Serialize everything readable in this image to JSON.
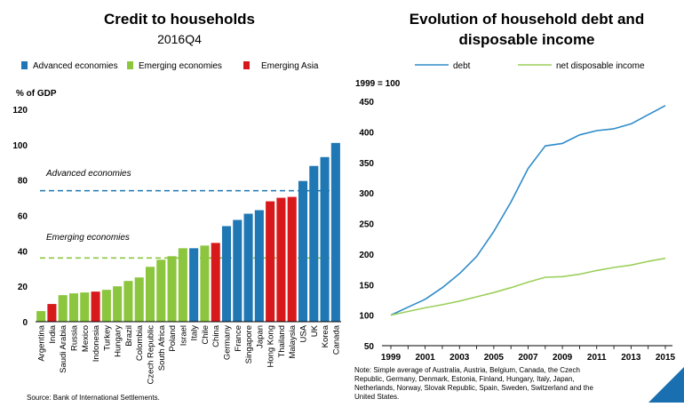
{
  "colors": {
    "advanced": "#1f77b4",
    "emerging": "#8cc63f",
    "asia": "#d7191c",
    "debt_line": "#2e8bc9",
    "income_line": "#9ccf5a",
    "corner": "#1a6fb0"
  },
  "left": {
    "title": "Credit to households",
    "subtitle": "2016Q4",
    "unit": "% of GDP",
    "legend": [
      {
        "label": "Advanced economies",
        "color": "#1f77b4"
      },
      {
        "label": "Emerging economies",
        "color": "#8cc63f"
      },
      {
        "label": "Emerging Asia",
        "color": "#d7191c"
      }
    ],
    "ref_lines": [
      {
        "label": "Advanced economies",
        "value": 74,
        "color": "#1f77b4"
      },
      {
        "label": "Emerging economies",
        "value": 36,
        "color": "#8cc63f"
      }
    ],
    "source": "Source: Bank of International Settlements."
  },
  "right": {
    "title_line1": "Evolution of household debt and",
    "title_line2": "disposable income",
    "index_note": "1999 = 100",
    "note_lines": [
      "Note: Simple average of Australia, Austria, Belgium, Canada, the Czech",
      "Republic, Germany, Denmark, Estonia, Finland, Hungary, Italy, Japan,",
      "Netherlands, Norway, Slovak Republic, Spain, Sweden, Switzerland and the",
      "United States."
    ]
  },
  "chart_data": [
    {
      "type": "bar",
      "title": "Credit to households",
      "subtitle": "2016Q4",
      "ylabel": "% of GDP",
      "ylim": [
        0,
        120
      ],
      "yticks": [
        0,
        20,
        40,
        60,
        80,
        100,
        120
      ],
      "grid": false,
      "legend_position": "top",
      "categories": [
        "Argentina",
        "India",
        "Saudi Arabia",
        "Russia",
        "Mexico",
        "Indonesia",
        "Turkey",
        "Hungary",
        "Brazil",
        "Colombia",
        "Czech Republic",
        "South Africa",
        "Poland",
        "Israel",
        "Italy",
        "Chile",
        "China",
        "Germany",
        "France",
        "Singapore",
        "Japan",
        "Hong Kong",
        "Thailand",
        "Malaysia",
        "USA",
        "UK",
        "Korea",
        "Canada"
      ],
      "values": [
        6,
        10,
        15,
        16,
        16.5,
        17,
        18,
        20,
        23,
        25,
        31,
        35,
        37,
        41.5,
        41.5,
        43,
        44.5,
        54,
        57.5,
        61,
        63,
        68,
        70,
        70.5,
        79.5,
        88,
        93,
        101
      ],
      "groups": [
        "emerging",
        "asia",
        "emerging",
        "emerging",
        "emerging",
        "asia",
        "emerging",
        "emerging",
        "emerging",
        "emerging",
        "emerging",
        "emerging",
        "emerging",
        "emerging",
        "advanced",
        "emerging",
        "asia",
        "advanced",
        "advanced",
        "advanced",
        "advanced",
        "asia",
        "asia",
        "asia",
        "advanced",
        "advanced",
        "advanced",
        "advanced"
      ]
    },
    {
      "type": "line",
      "title": "Evolution of household debt and disposable income",
      "ylabel": "1999 = 100",
      "ylim": [
        50,
        450
      ],
      "yticks": [
        50,
        100,
        150,
        200,
        250,
        300,
        350,
        400,
        450
      ],
      "xlim": [
        1999,
        2015
      ],
      "xticks": [
        1999,
        2001,
        2003,
        2005,
        2007,
        2009,
        2011,
        2013,
        2015
      ],
      "grid": false,
      "legend_position": "top",
      "x": [
        1999,
        2000,
        2001,
        2002,
        2003,
        2004,
        2005,
        2006,
        2007,
        2008,
        2009,
        2010,
        2011,
        2012,
        2013,
        2014,
        2015
      ],
      "series": [
        {
          "name": "debt",
          "color": "#2e8bc9",
          "values": [
            100,
            113,
            126,
            145,
            168,
            196,
            237,
            285,
            340,
            377,
            381,
            395,
            402,
            405,
            413,
            428,
            443
          ]
        },
        {
          "name": "net disposable income",
          "color": "#9ccf5a",
          "values": [
            100,
            106,
            112,
            117,
            123,
            130,
            137,
            145,
            154,
            162,
            163,
            167,
            173,
            178,
            182,
            188,
            193
          ]
        }
      ]
    }
  ]
}
